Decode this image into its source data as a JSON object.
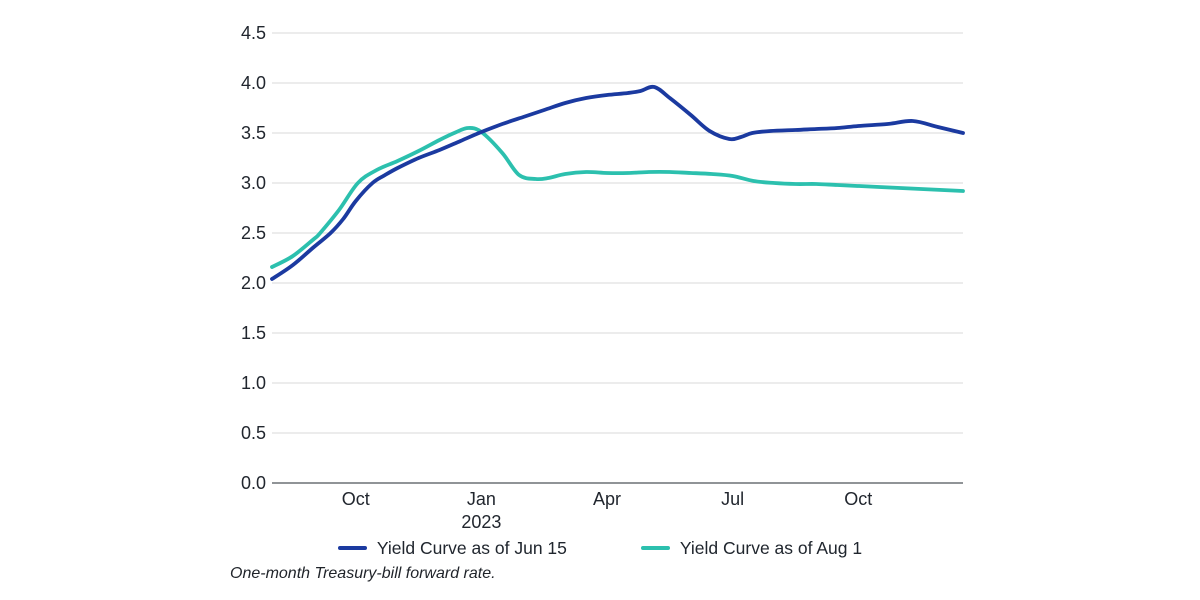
{
  "chart_data": {
    "type": "line",
    "title": "",
    "xlabel": "",
    "ylabel": "",
    "ylim": [
      0,
      4.5
    ],
    "y_ticks": [
      "0.0",
      "0.5",
      "1.0",
      "1.5",
      "2.0",
      "2.5",
      "3.0",
      "3.5",
      "4.0",
      "4.5"
    ],
    "x_unit": "months-from-Aug-2022",
    "x_range_months": [
      0,
      16.5
    ],
    "x_ticks": [
      {
        "label": "Oct",
        "sublabel": "",
        "t": 2
      },
      {
        "label": "Jan",
        "sublabel": "2023",
        "t": 5
      },
      {
        "label": "Apr",
        "sublabel": "",
        "t": 8
      },
      {
        "label": "Jul",
        "sublabel": "",
        "t": 11
      },
      {
        "label": "Oct",
        "sublabel": "",
        "t": 14
      }
    ],
    "grid": "horizontal",
    "legend_position": "bottom",
    "series": [
      {
        "name": "Yield Curve as of Jun 15",
        "color": "#1b3aa0",
        "points": [
          [
            0,
            2.04
          ],
          [
            0.5,
            2.18
          ],
          [
            1,
            2.36
          ],
          [
            1.4,
            2.5
          ],
          [
            1.7,
            2.64
          ],
          [
            2,
            2.82
          ],
          [
            2.4,
            3.0
          ],
          [
            2.7,
            3.08
          ],
          [
            3,
            3.15
          ],
          [
            3.5,
            3.25
          ],
          [
            4,
            3.33
          ],
          [
            4.5,
            3.42
          ],
          [
            5,
            3.51
          ],
          [
            5.5,
            3.59
          ],
          [
            6,
            3.66
          ],
          [
            6.5,
            3.73
          ],
          [
            7,
            3.8
          ],
          [
            7.5,
            3.85
          ],
          [
            8,
            3.88
          ],
          [
            8.5,
            3.9
          ],
          [
            8.8,
            3.92
          ],
          [
            9.13,
            3.96
          ],
          [
            9.5,
            3.85
          ],
          [
            10,
            3.68
          ],
          [
            10.45,
            3.52
          ],
          [
            10.92,
            3.44
          ],
          [
            11.2,
            3.46
          ],
          [
            11.47,
            3.5
          ],
          [
            11.9,
            3.52
          ],
          [
            12.5,
            3.53
          ],
          [
            13,
            3.54
          ],
          [
            13.5,
            3.55
          ],
          [
            14,
            3.57
          ],
          [
            14.7,
            3.59
          ],
          [
            15.3,
            3.62
          ],
          [
            15.9,
            3.56
          ],
          [
            16.5,
            3.5
          ]
        ]
      },
      {
        "name": "Yield Curve as of Aug 1",
        "color": "#2cc0ae",
        "points": [
          [
            0,
            2.16
          ],
          [
            0.5,
            2.27
          ],
          [
            1,
            2.44
          ],
          [
            1.15,
            2.5
          ],
          [
            1.6,
            2.73
          ],
          [
            2.05,
            3.0
          ],
          [
            2.5,
            3.13
          ],
          [
            3,
            3.22
          ],
          [
            3.5,
            3.32
          ],
          [
            4,
            3.43
          ],
          [
            4.35,
            3.5
          ],
          [
            4.68,
            3.55
          ],
          [
            5,
            3.51
          ],
          [
            5.5,
            3.3
          ],
          [
            5.9,
            3.08
          ],
          [
            6.3,
            3.04
          ],
          [
            6.6,
            3.05
          ],
          [
            7,
            3.09
          ],
          [
            7.5,
            3.11
          ],
          [
            8,
            3.1
          ],
          [
            8.5,
            3.1
          ],
          [
            9,
            3.11
          ],
          [
            9.5,
            3.11
          ],
          [
            10,
            3.1
          ],
          [
            10.5,
            3.09
          ],
          [
            11,
            3.07
          ],
          [
            11.5,
            3.02
          ],
          [
            12,
            3.0
          ],
          [
            12.5,
            2.99
          ],
          [
            13,
            2.99
          ],
          [
            13.5,
            2.98
          ],
          [
            14,
            2.97
          ],
          [
            14.5,
            2.96
          ],
          [
            15,
            2.95
          ],
          [
            15.5,
            2.94
          ],
          [
            16,
            2.93
          ],
          [
            16.5,
            2.92
          ]
        ]
      }
    ],
    "footnote": "One-month Treasury-bill forward rate.",
    "colors": {
      "gridline": "#d9d9d9",
      "axis_line": "#6b7075",
      "tick_text": "#21262e"
    }
  }
}
